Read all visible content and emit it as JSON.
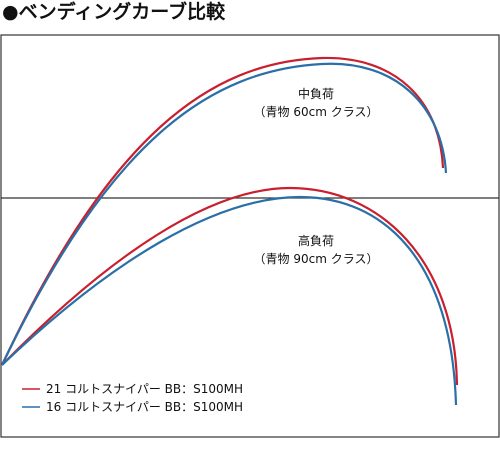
{
  "title": "●ベンディングカーブ比較",
  "colors": {
    "series1": "#c8202e",
    "series2": "#2a6fa8",
    "frame": "#333333"
  },
  "chart_data": {
    "type": "line",
    "title": "●ベンディングカーブ比較",
    "panels": [
      {
        "label_line1": "中負荷",
        "label_line2": "（青物 60cm クラス）"
      },
      {
        "label_line1": "高負荷",
        "label_line2": "（青物 90cm クラス）"
      }
    ],
    "series": [
      {
        "name": "21 コルトスナイパー BB：S100MH",
        "color": "#c8202e"
      },
      {
        "name": "16 コルトスナイパー BB：S100MH",
        "color": "#2a6fa8"
      }
    ],
    "legend": "bottom-left",
    "grid": false
  }
}
